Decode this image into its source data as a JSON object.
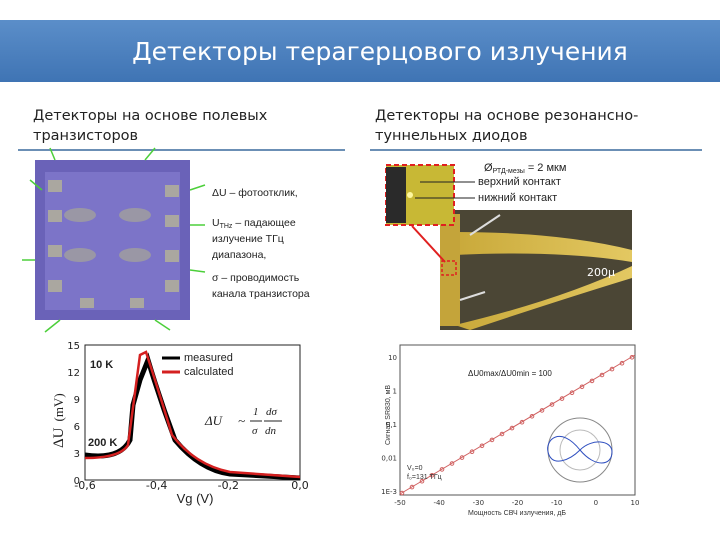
{
  "title": "Детекторы терагерцового излучения",
  "left": {
    "heading": [
      "Детекторы на основе полевых",
      "транзисторов"
    ],
    "notes": [
      "ΔU – фотоотклик,",
      "U",
      "THz",
      " – падающее",
      "излучение ТГц",
      "диапазона,",
      "σ – проводимость",
      "канала транзистора"
    ],
    "plot": {
      "legend": [
        "measured",
        "calculated"
      ],
      "labels": [
        "10 K",
        "200 K"
      ],
      "ylabel": "ΔU",
      "yunit": "(mV)",
      "xlabel": "Vg (V)",
      "xticks": [
        "-0,6",
        "-0,4",
        "-0,2",
        "0,0"
      ],
      "yticks": [
        "0",
        "3",
        "6",
        "9",
        "12",
        "15"
      ],
      "formula": [
        "ΔU",
        "~",
        "1",
        "σ",
        "dσ",
        "dn"
      ]
    }
  },
  "right": {
    "heading": [
      "Детекторы на основе резонансно-",
      "туннельных диодов"
    ],
    "photo": {
      "diameter": "Ø",
      "sub": "РТД-мезы",
      "size": "= 2 мкм",
      "top": "верхний контакт",
      "bottom": "нижний контакт",
      "scale": "200μ"
    },
    "plot": {
      "ratio": "ΔU0max/ΔU0min = 100",
      "ylabel": "Сигнал SR830, мВ",
      "xlabel": "Мощность СВЧ излучения, дБ",
      "xticks": [
        "-50",
        "-40",
        "-30",
        "-20",
        "-10",
        "0",
        "10"
      ],
      "yticks": [
        "10",
        "1",
        "0,1",
        "0,01",
        "1E-3"
      ]
    }
  }
}
